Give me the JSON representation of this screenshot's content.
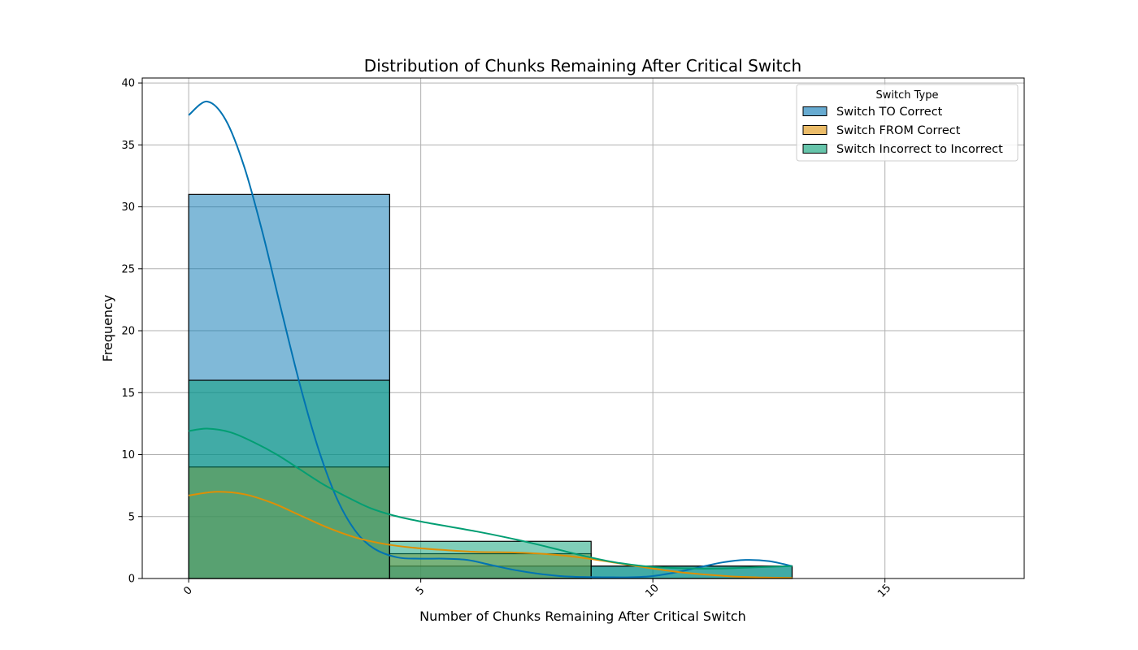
{
  "chart_data": {
    "type": "histogram",
    "title": "Distribution of Chunks Remaining After Critical Switch",
    "xlabel": "Number of Chunks Remaining After Critical Switch",
    "ylabel": "Frequency",
    "xlim": [
      -1,
      18
    ],
    "ylim": [
      0,
      40.4
    ],
    "xticks": [
      0,
      5,
      10,
      15
    ],
    "yticks": [
      0,
      5,
      10,
      15,
      20,
      25,
      30,
      35,
      40
    ],
    "grid": true,
    "bin_edges": [
      0,
      4.33,
      8.67,
      13
    ],
    "legend": {
      "title": "Switch Type",
      "position": "top-right"
    },
    "series": [
      {
        "name": "Switch TO Correct",
        "color": "#0173b2",
        "counts": [
          31,
          1,
          1
        ],
        "kde": [
          [
            0,
            37.4
          ],
          [
            0.4,
            38.5
          ],
          [
            0.8,
            37.0
          ],
          [
            1.2,
            33.2
          ],
          [
            1.6,
            27.8
          ],
          [
            2.0,
            21.6
          ],
          [
            2.4,
            15.6
          ],
          [
            2.8,
            10.4
          ],
          [
            3.2,
            6.4
          ],
          [
            3.6,
            3.8
          ],
          [
            4.0,
            2.4
          ],
          [
            4.5,
            1.7
          ],
          [
            5.0,
            1.6
          ],
          [
            5.5,
            1.6
          ],
          [
            6.0,
            1.5
          ],
          [
            6.5,
            1.1
          ],
          [
            7.0,
            0.7
          ],
          [
            7.5,
            0.4
          ],
          [
            8.0,
            0.2
          ],
          [
            8.5,
            0.12
          ],
          [
            9.0,
            0.1
          ],
          [
            9.5,
            0.1
          ],
          [
            10.0,
            0.2
          ],
          [
            10.5,
            0.5
          ],
          [
            11.0,
            0.9
          ],
          [
            11.5,
            1.3
          ],
          [
            12.0,
            1.5
          ],
          [
            12.5,
            1.4
          ],
          [
            13.0,
            1.0
          ]
        ]
      },
      {
        "name": "Switch FROM Correct",
        "color": "#de8f05",
        "counts": [
          9,
          2,
          0
        ],
        "kde": [
          [
            0,
            6.7
          ],
          [
            0.6,
            7.0
          ],
          [
            1.2,
            6.8
          ],
          [
            1.8,
            6.1
          ],
          [
            2.4,
            5.1
          ],
          [
            3.0,
            4.1
          ],
          [
            3.6,
            3.3
          ],
          [
            4.2,
            2.8
          ],
          [
            4.8,
            2.5
          ],
          [
            5.5,
            2.3
          ],
          [
            6.2,
            2.15
          ],
          [
            7.0,
            2.1
          ],
          [
            7.6,
            2.0
          ],
          [
            8.2,
            1.8
          ],
          [
            8.8,
            1.5
          ],
          [
            9.4,
            1.15
          ],
          [
            10.0,
            0.8
          ],
          [
            10.6,
            0.5
          ],
          [
            11.2,
            0.3
          ],
          [
            11.8,
            0.15
          ],
          [
            12.4,
            0.08
          ],
          [
            13.0,
            0.05
          ]
        ]
      },
      {
        "name": "Switch Incorrect to Incorrect",
        "color": "#029e73",
        "counts": [
          16,
          3,
          1
        ],
        "kde": [
          [
            0,
            11.9
          ],
          [
            0.4,
            12.1
          ],
          [
            0.9,
            11.8
          ],
          [
            1.4,
            11.0
          ],
          [
            1.9,
            10.0
          ],
          [
            2.4,
            8.8
          ],
          [
            2.9,
            7.6
          ],
          [
            3.4,
            6.6
          ],
          [
            3.9,
            5.7
          ],
          [
            4.4,
            5.1
          ],
          [
            5.0,
            4.6
          ],
          [
            5.6,
            4.2
          ],
          [
            6.2,
            3.8
          ],
          [
            6.8,
            3.35
          ],
          [
            7.4,
            2.85
          ],
          [
            8.0,
            2.3
          ],
          [
            8.6,
            1.75
          ],
          [
            9.2,
            1.3
          ],
          [
            9.8,
            1.0
          ],
          [
            10.4,
            0.85
          ],
          [
            11.0,
            0.8
          ],
          [
            11.6,
            0.82
          ],
          [
            12.2,
            0.9
          ],
          [
            13.0,
            1.0
          ]
        ]
      }
    ]
  }
}
